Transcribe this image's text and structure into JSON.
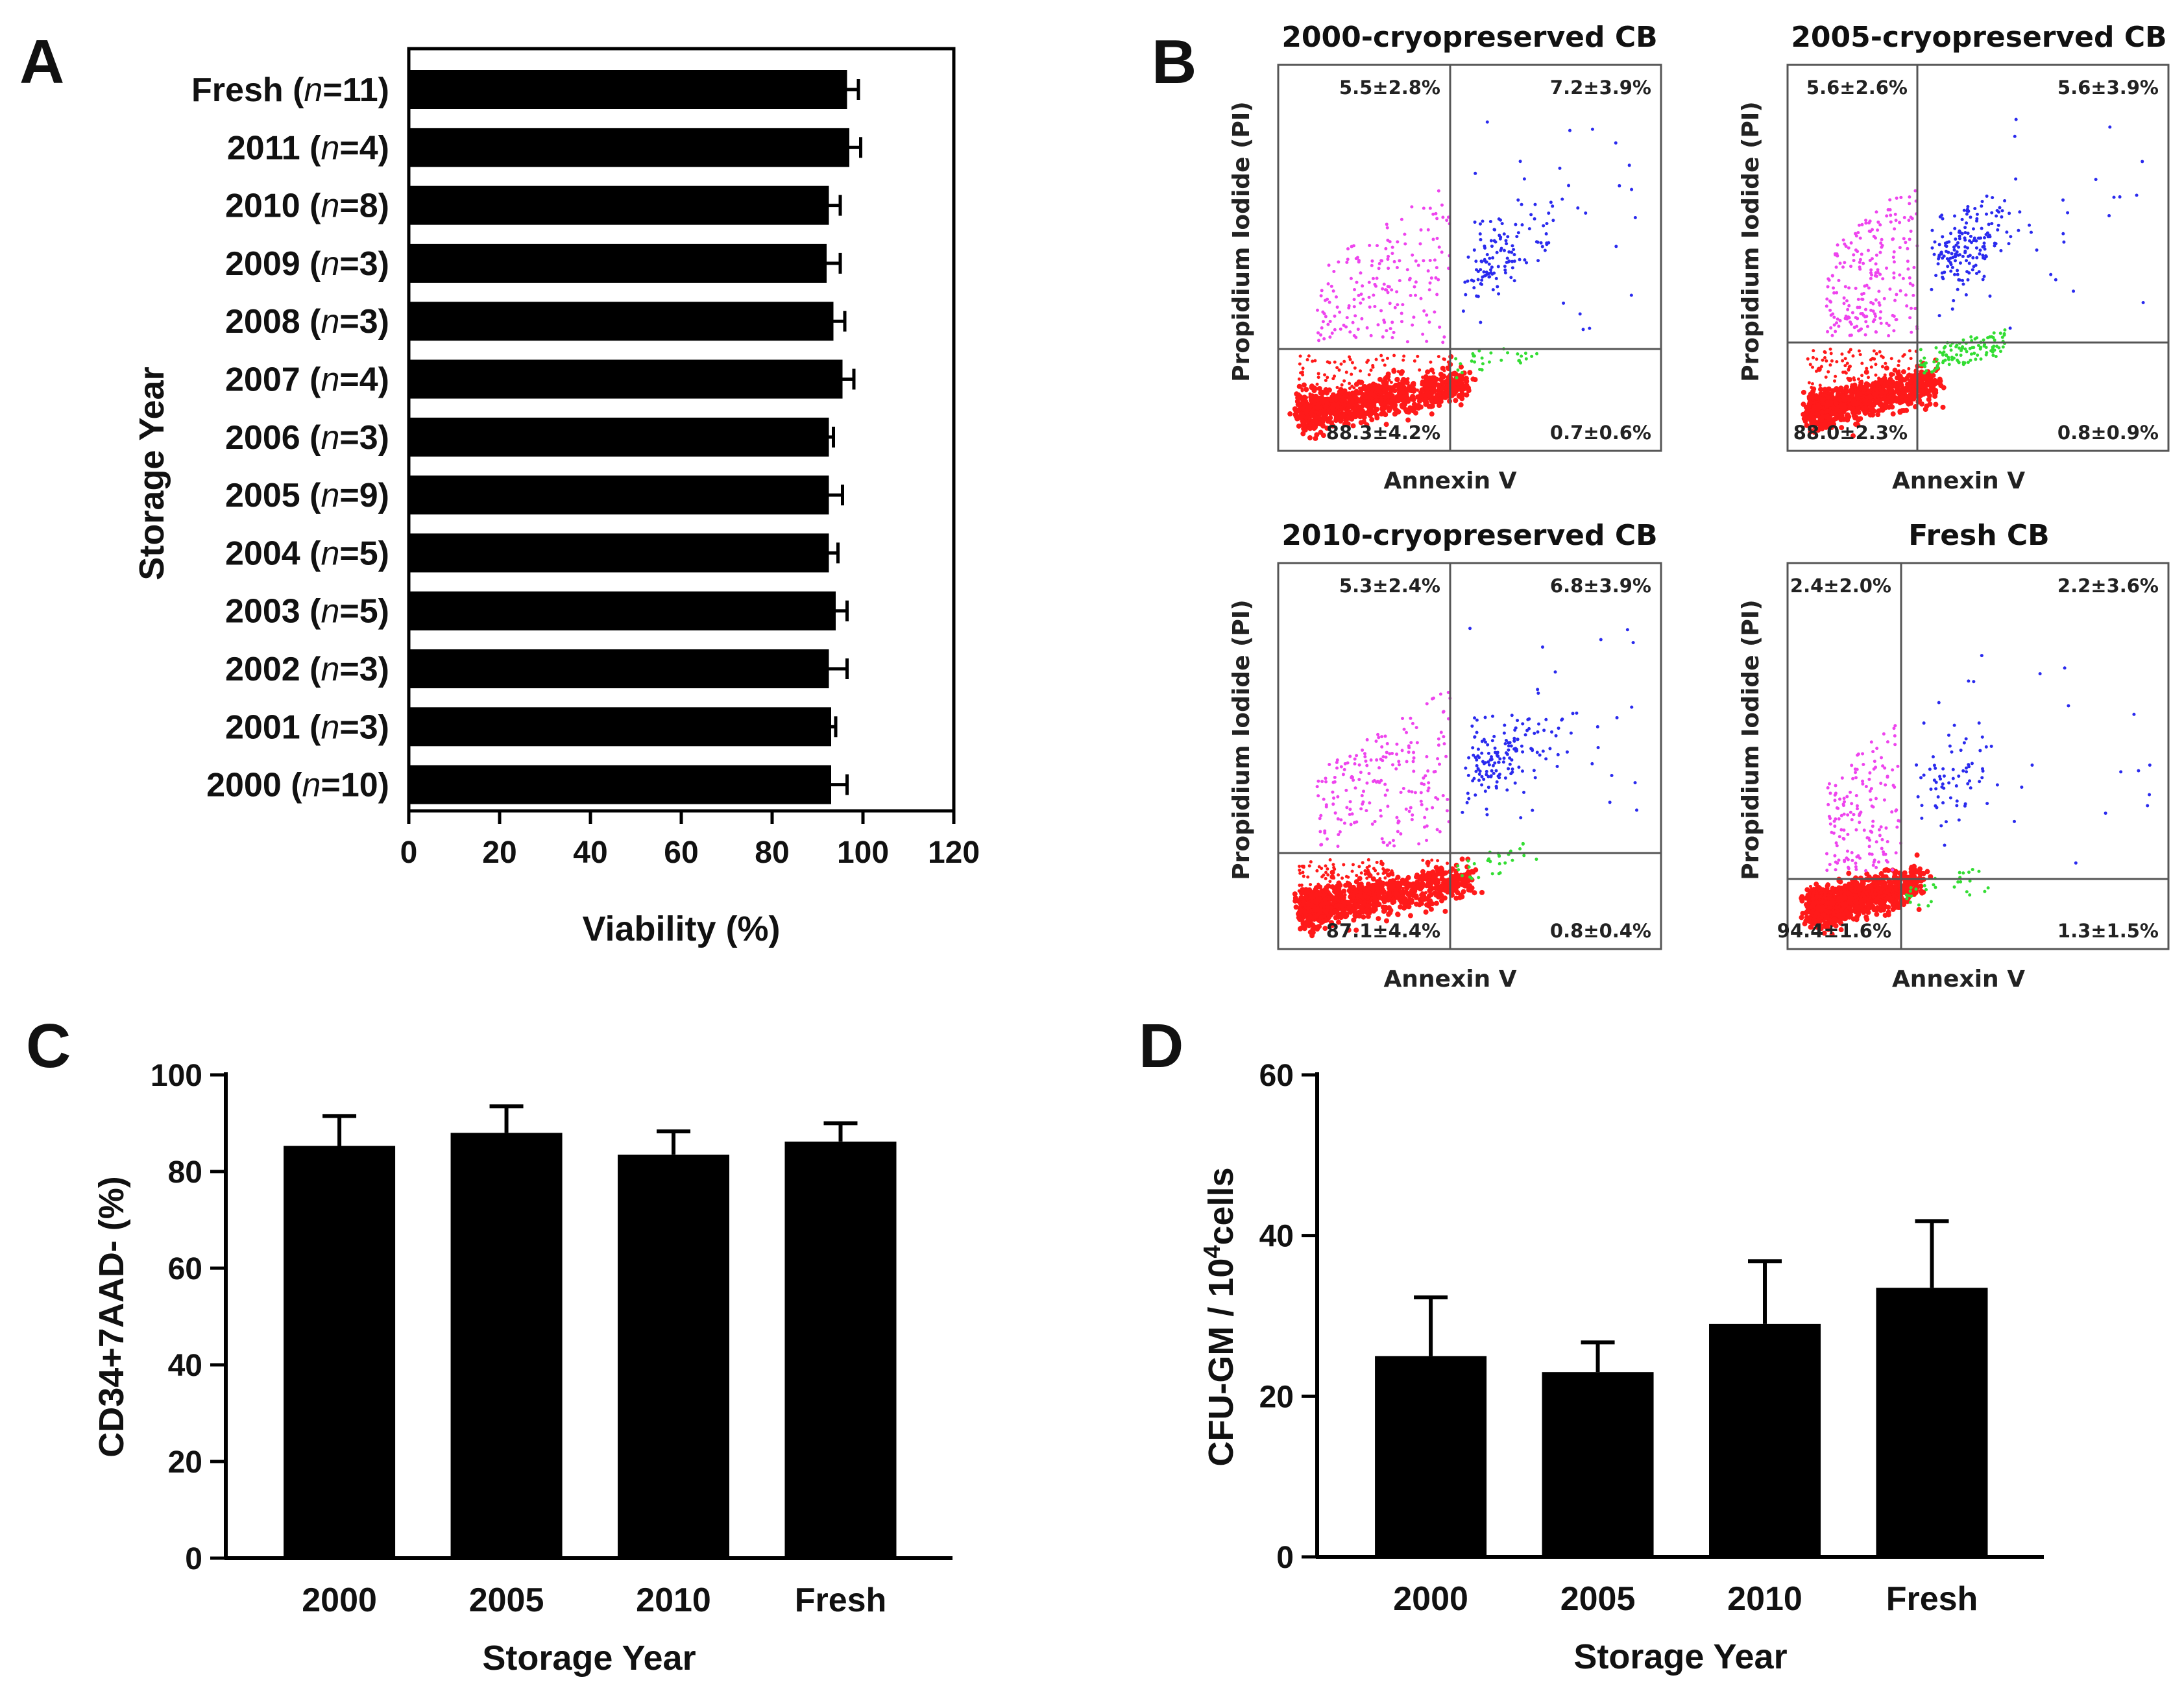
{
  "panel_labels": [
    "A",
    "B",
    "C",
    "D"
  ],
  "chart_data": [
    {
      "panel": "A",
      "type": "bar",
      "orientation": "horizontal",
      "xlabel": "Viability (%)",
      "ylabel": "Storage Year",
      "xlim": [
        0,
        120
      ],
      "xticks": [
        "0",
        "20",
        "40",
        "60",
        "80",
        "100",
        "120"
      ],
      "categories": [
        {
          "year": "Fresh",
          "n_label": "n",
          "n_value": "=11)"
        },
        {
          "year": "2011",
          "n_label": "n",
          "n_value": "=4)"
        },
        {
          "year": "2010",
          "n_label": "n",
          "n_value": "=8)"
        },
        {
          "year": "2009",
          "n_label": "n",
          "n_value": "=3)"
        },
        {
          "year": "2008",
          "n_label": "n",
          "n_value": "=3)"
        },
        {
          "year": "2007",
          "n_label": "n",
          "n_value": "=4)"
        },
        {
          "year": "2006",
          "n_label": "n",
          "n_value": "=3)"
        },
        {
          "year": "2005",
          "n_label": "n",
          "n_value": "=9)"
        },
        {
          "year": "2004",
          "n_label": "n",
          "n_value": "=5)"
        },
        {
          "year": "2003",
          "n_label": "n",
          "n_value": "=5)"
        },
        {
          "year": "2002",
          "n_label": "n",
          "n_value": "=3)"
        },
        {
          "year": "2001",
          "n_label": "n",
          "n_value": "=3)"
        },
        {
          "year": "2000",
          "n_label": "n",
          "n_value": "=10)"
        }
      ],
      "values": [
        96.5,
        97.0,
        92.5,
        92.0,
        93.5,
        95.5,
        92.5,
        92.5,
        92.5,
        94.0,
        92.5,
        93.0,
        93.0
      ],
      "errors": [
        2.5,
        2.5,
        2.5,
        3.0,
        2.5,
        2.5,
        1.0,
        3.0,
        2.0,
        2.5,
        4.0,
        1.0,
        3.5
      ],
      "color": "#000000"
    },
    {
      "panel": "B",
      "type": "scatter",
      "subtype": "flow-cytometry-quadrants",
      "xlabel": "Annexin V",
      "ylabel": "Propidium Iodide (PI)",
      "plots": [
        {
          "title": "2000-cryopreserved  CB",
          "quadrants": {
            "upper_left": "5.5±2.8%",
            "upper_right": "7.2±3.9%",
            "lower_left": "88.3±4.2%",
            "lower_right": "0.7±0.6%"
          }
        },
        {
          "title": "2005-cryopreserved  CB",
          "quadrants": {
            "upper_left": "5.6±2.6%",
            "upper_right": "5.6±3.9%",
            "lower_left": "88.0±2.3%",
            "lower_right": "0.8±0.9%"
          }
        },
        {
          "title": "2010-cryopreserved  CB",
          "quadrants": {
            "upper_left": "5.3±2.4%",
            "upper_right": "6.8±3.9%",
            "lower_left": "87.1±4.4%",
            "lower_right": "0.8±0.4%"
          }
        },
        {
          "title": "Fresh  CB",
          "quadrants": {
            "upper_left": "2.4±2.0%",
            "upper_right": "2.2±3.6%",
            "lower_left": "94.4±1.6%",
            "lower_right": "1.3±1.5%"
          }
        }
      ],
      "population_colors": {
        "live": "#ff1a1a",
        "early_apoptotic": "#33dd33",
        "late_apoptotic": "#2a2aee",
        "necrotic": "#ee44ee"
      }
    },
    {
      "panel": "C",
      "type": "bar",
      "xlabel": "Storage Year",
      "ylabel": "CD34+7AAD- (%)",
      "ylim": [
        0,
        100
      ],
      "yticks": [
        "0",
        "20",
        "40",
        "60",
        "80",
        "100"
      ],
      "categories": [
        "2000",
        "2005",
        "2010",
        "Fresh"
      ],
      "values": [
        85.3,
        88.0,
        83.5,
        86.2
      ],
      "errors": [
        6.2,
        5.5,
        4.8,
        3.8
      ],
      "color": "#000000"
    },
    {
      "panel": "D",
      "type": "bar",
      "xlabel": "Storage Year",
      "ylabel_prefix": "CFU-GM / 10",
      "ylabel_sup": "4",
      "ylabel_suffix": "cells",
      "ylim": [
        0,
        60
      ],
      "yticks": [
        "0",
        "20",
        "40",
        "60"
      ],
      "categories": [
        "2000",
        "2005",
        "2010",
        "Fresh"
      ],
      "values": [
        25.0,
        23.0,
        29.0,
        33.5
      ],
      "errors": [
        7.3,
        3.7,
        7.8,
        8.3
      ],
      "color": "#000000"
    }
  ]
}
